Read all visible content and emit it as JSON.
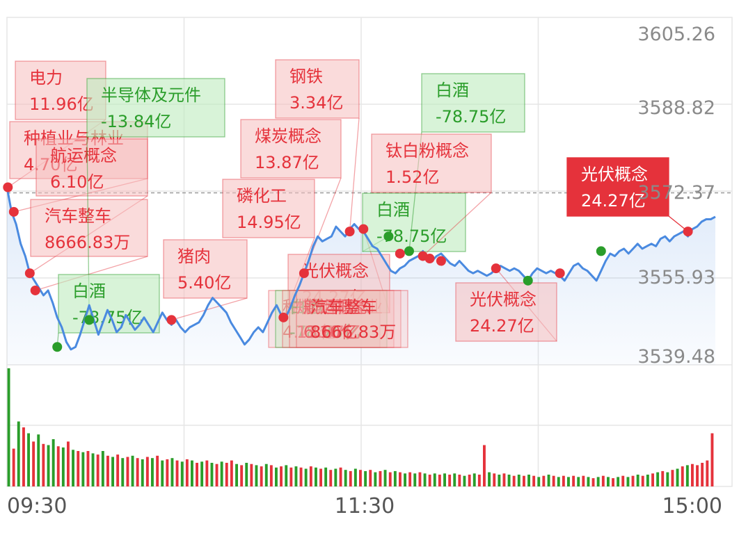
{
  "colors": {
    "up": "#e5323b",
    "down": "#2a9d2a",
    "line": "#4a8ae0",
    "grid": "#e6e6e6",
    "axis_text": "#8a8a8a"
  },
  "chart_data": {
    "type": "line",
    "title": "",
    "xlabel": "",
    "ylabel": "",
    "y_ticks": [
      "3605.26",
      "3588.82",
      "3572.37",
      "3555.93",
      "3539.48"
    ],
    "ylim": [
      3539.48,
      3605.26
    ],
    "reference_price": 3572.37,
    "time_ticks": [
      "09:30",
      "11:30",
      "15:00"
    ],
    "price_series": [
      3573.5,
      3568.5,
      3566.0,
      3562.0,
      3559.5,
      3556.0,
      3554.5,
      3553.0,
      3551.5,
      3552.5,
      3550.0,
      3547.0,
      3545.0,
      3542.0,
      3540.5,
      3541.0,
      3543.5,
      3546.5,
      3549.5,
      3546.5,
      3543.5,
      3546.0,
      3548.5,
      3546.5,
      3544.0,
      3545.0,
      3547.5,
      3546.0,
      3544.5,
      3545.5,
      3547.0,
      3545.5,
      3544.0,
      3546.0,
      3548.0,
      3546.5,
      3545.5,
      3546.5,
      3545.0,
      3544.0,
      3545.0,
      3545.5,
      3546.0,
      3547.5,
      3549.5,
      3551.0,
      3550.0,
      3549.0,
      3548.0,
      3546.0,
      3544.5,
      3543.0,
      3541.5,
      3542.5,
      3544.0,
      3545.0,
      3544.0,
      3546.0,
      3548.0,
      3549.5,
      3547.5,
      3547.0,
      3549.0,
      3551.5,
      3553.5,
      3556.0,
      3558.5,
      3561.5,
      3563.5,
      3562.5,
      3563.0,
      3563.5,
      3565.5,
      3564.5,
      3563.5,
      3565.0,
      3566.0,
      3565.0,
      3564.5,
      3563.0,
      3561.5,
      3561.0,
      3559.5,
      3558.0,
      3556.5,
      3556.0,
      3557.0,
      3557.5,
      3558.5,
      3559.0,
      3559.5,
      3560.5,
      3559.0,
      3558.5,
      3559.5,
      3560.0,
      3559.0,
      3558.0,
      3557.5,
      3558.5,
      3557.5,
      3556.5,
      3556.0,
      3556.5,
      3556.0,
      3555.5,
      3556.0,
      3557.0,
      3557.5,
      3557.0,
      3556.5,
      3557.0,
      3556.5,
      3555.5,
      3554.5,
      3556.0,
      3557.0,
      3556.5,
      3556.0,
      3556.5,
      3556.0,
      3555.5,
      3554.5,
      3556.0,
      3557.5,
      3558.0,
      3557.0,
      3556.5,
      3555.5,
      3554.5,
      3556.5,
      3558.5,
      3560.0,
      3559.5,
      3560.5,
      3561.0,
      3560.0,
      3561.0,
      3562.0,
      3561.0,
      3561.5,
      3562.0,
      3561.5,
      3563.0,
      3563.5,
      3562.5,
      3563.5,
      3564.0,
      3564.5,
      3563.5,
      3565.0,
      3565.5,
      3566.5,
      3567.0,
      3567.0,
      3567.5
    ],
    "volume_bars": [
      {
        "v": 1.0,
        "c": "down"
      },
      {
        "v": 0.32,
        "c": "up"
      },
      {
        "v": 0.55,
        "c": "down"
      },
      {
        "v": 0.5,
        "c": "up"
      },
      {
        "v": 0.45,
        "c": "down"
      },
      {
        "v": 0.38,
        "c": "up"
      },
      {
        "v": 0.44,
        "c": "down"
      },
      {
        "v": 0.36,
        "c": "up"
      },
      {
        "v": 0.35,
        "c": "down"
      },
      {
        "v": 0.4,
        "c": "down"
      },
      {
        "v": 0.34,
        "c": "up"
      },
      {
        "v": 0.33,
        "c": "down"
      },
      {
        "v": 0.38,
        "c": "up"
      },
      {
        "v": 0.31,
        "c": "down"
      },
      {
        "v": 0.3,
        "c": "up"
      },
      {
        "v": 0.29,
        "c": "down"
      },
      {
        "v": 0.3,
        "c": "up"
      },
      {
        "v": 0.28,
        "c": "down"
      },
      {
        "v": 0.27,
        "c": "up"
      },
      {
        "v": 0.3,
        "c": "down"
      },
      {
        "v": 0.26,
        "c": "up"
      },
      {
        "v": 0.25,
        "c": "down"
      },
      {
        "v": 0.27,
        "c": "up"
      },
      {
        "v": 0.24,
        "c": "down"
      },
      {
        "v": 0.25,
        "c": "up"
      },
      {
        "v": 0.26,
        "c": "down"
      },
      {
        "v": 0.24,
        "c": "up"
      },
      {
        "v": 0.23,
        "c": "down"
      },
      {
        "v": 0.25,
        "c": "up"
      },
      {
        "v": 0.24,
        "c": "down"
      },
      {
        "v": 0.26,
        "c": "up"
      },
      {
        "v": 0.22,
        "c": "down"
      },
      {
        "v": 0.23,
        "c": "up"
      },
      {
        "v": 0.24,
        "c": "down"
      },
      {
        "v": 0.22,
        "c": "up"
      },
      {
        "v": 0.21,
        "c": "down"
      },
      {
        "v": 0.23,
        "c": "up"
      },
      {
        "v": 0.22,
        "c": "down"
      },
      {
        "v": 0.2,
        "c": "up"
      },
      {
        "v": 0.21,
        "c": "down"
      },
      {
        "v": 0.22,
        "c": "up"
      },
      {
        "v": 0.2,
        "c": "down"
      },
      {
        "v": 0.19,
        "c": "up"
      },
      {
        "v": 0.21,
        "c": "down"
      },
      {
        "v": 0.2,
        "c": "up"
      },
      {
        "v": 0.22,
        "c": "up"
      },
      {
        "v": 0.19,
        "c": "down"
      },
      {
        "v": 0.18,
        "c": "up"
      },
      {
        "v": 0.2,
        "c": "down"
      },
      {
        "v": 0.19,
        "c": "up"
      },
      {
        "v": 0.18,
        "c": "down"
      },
      {
        "v": 0.17,
        "c": "up"
      },
      {
        "v": 0.19,
        "c": "down"
      },
      {
        "v": 0.18,
        "c": "up"
      },
      {
        "v": 0.16,
        "c": "down"
      },
      {
        "v": 0.17,
        "c": "up"
      },
      {
        "v": 0.18,
        "c": "down"
      },
      {
        "v": 0.16,
        "c": "up"
      },
      {
        "v": 0.17,
        "c": "down"
      },
      {
        "v": 0.16,
        "c": "up"
      },
      {
        "v": 0.15,
        "c": "down"
      },
      {
        "v": 0.17,
        "c": "up"
      },
      {
        "v": 0.16,
        "c": "down"
      },
      {
        "v": 0.15,
        "c": "up"
      },
      {
        "v": 0.16,
        "c": "down"
      },
      {
        "v": 0.14,
        "c": "up"
      },
      {
        "v": 0.15,
        "c": "down"
      },
      {
        "v": 0.16,
        "c": "up"
      },
      {
        "v": 0.14,
        "c": "down"
      },
      {
        "v": 0.13,
        "c": "up"
      },
      {
        "v": 0.15,
        "c": "down"
      },
      {
        "v": 0.14,
        "c": "up"
      },
      {
        "v": 0.13,
        "c": "down"
      },
      {
        "v": 0.14,
        "c": "up"
      },
      {
        "v": 0.12,
        "c": "down"
      },
      {
        "v": 0.13,
        "c": "up"
      },
      {
        "v": 0.14,
        "c": "down"
      },
      {
        "v": 0.12,
        "c": "up"
      },
      {
        "v": 0.13,
        "c": "down"
      },
      {
        "v": 0.12,
        "c": "up"
      },
      {
        "v": 0.11,
        "c": "down"
      },
      {
        "v": 0.12,
        "c": "up"
      },
      {
        "v": 0.11,
        "c": "down"
      },
      {
        "v": 0.12,
        "c": "up"
      },
      {
        "v": 0.11,
        "c": "down"
      },
      {
        "v": 0.1,
        "c": "up"
      },
      {
        "v": 0.11,
        "c": "down"
      },
      {
        "v": 0.1,
        "c": "up"
      },
      {
        "v": 0.11,
        "c": "down"
      },
      {
        "v": 0.1,
        "c": "up"
      },
      {
        "v": 0.11,
        "c": "down"
      },
      {
        "v": 0.1,
        "c": "up"
      },
      {
        "v": 0.09,
        "c": "down"
      },
      {
        "v": 0.1,
        "c": "up"
      },
      {
        "v": 0.11,
        "c": "down"
      },
      {
        "v": 0.1,
        "c": "up"
      },
      {
        "v": 0.35,
        "c": "up"
      },
      {
        "v": 0.12,
        "c": "down"
      },
      {
        "v": 0.11,
        "c": "up"
      },
      {
        "v": 0.1,
        "c": "down"
      },
      {
        "v": 0.11,
        "c": "up"
      },
      {
        "v": 0.1,
        "c": "down"
      },
      {
        "v": 0.09,
        "c": "up"
      },
      {
        "v": 0.1,
        "c": "down"
      },
      {
        "v": 0.09,
        "c": "up"
      },
      {
        "v": 0.1,
        "c": "down"
      },
      {
        "v": 0.09,
        "c": "up"
      },
      {
        "v": 0.08,
        "c": "down"
      },
      {
        "v": 0.09,
        "c": "up"
      },
      {
        "v": 0.1,
        "c": "down"
      },
      {
        "v": 0.09,
        "c": "up"
      },
      {
        "v": 0.08,
        "c": "down"
      },
      {
        "v": 0.09,
        "c": "up"
      },
      {
        "v": 0.08,
        "c": "down"
      },
      {
        "v": 0.09,
        "c": "up"
      },
      {
        "v": 0.08,
        "c": "down"
      },
      {
        "v": 0.09,
        "c": "up"
      },
      {
        "v": 0.08,
        "c": "down"
      },
      {
        "v": 0.07,
        "c": "up"
      },
      {
        "v": 0.08,
        "c": "down"
      },
      {
        "v": 0.09,
        "c": "up"
      },
      {
        "v": 0.08,
        "c": "down"
      },
      {
        "v": 0.07,
        "c": "up"
      },
      {
        "v": 0.08,
        "c": "down"
      },
      {
        "v": 0.09,
        "c": "up"
      },
      {
        "v": 0.08,
        "c": "down"
      },
      {
        "v": 0.09,
        "c": "up"
      },
      {
        "v": 0.1,
        "c": "down"
      },
      {
        "v": 0.09,
        "c": "up"
      },
      {
        "v": 0.1,
        "c": "down"
      },
      {
        "v": 0.11,
        "c": "up"
      },
      {
        "v": 0.12,
        "c": "down"
      },
      {
        "v": 0.13,
        "c": "up"
      },
      {
        "v": 0.12,
        "c": "down"
      },
      {
        "v": 0.14,
        "c": "up"
      },
      {
        "v": 0.15,
        "c": "down"
      },
      {
        "v": 0.17,
        "c": "up"
      },
      {
        "v": 0.18,
        "c": "down"
      },
      {
        "v": 0.19,
        "c": "up"
      },
      {
        "v": 0.18,
        "c": "up"
      },
      {
        "v": 0.2,
        "c": "up"
      },
      {
        "v": 0.22,
        "c": "up"
      },
      {
        "v": 0.45,
        "c": "up"
      }
    ],
    "annotations": [
      {
        "name": "电力",
        "value": "11.96亿",
        "color": "up",
        "at": [
          0.2,
          3573.5
        ]
      },
      {
        "name": "种植业与林业",
        "value": "4.70亿",
        "color": "up",
        "at": [
          1.5,
          3568.5
        ]
      },
      {
        "name": "航运概念",
        "value": "6.10亿",
        "color": "up",
        "at": [
          5.0,
          3556.0
        ]
      },
      {
        "name": "汽车整车",
        "value": "8666.83万",
        "color": "up",
        "at": [
          6.2,
          3552.5
        ]
      },
      {
        "name": "半导体及元件",
        "value": "-13.84亿",
        "color": "down",
        "at": [
          18.0,
          3546.5
        ]
      },
      {
        "name": "白酒",
        "value": "-78.75亿",
        "color": "down",
        "at": [
          11.0,
          3541.0
        ]
      },
      {
        "name": "猪肉",
        "value": "5.40亿",
        "color": "up",
        "at": [
          36.0,
          3546.5
        ]
      },
      {
        "name": "磷化工",
        "value": "14.95亿",
        "color": "up",
        "at": [
          60.5,
          3547.0
        ]
      },
      {
        "name": "煤炭概念",
        "value": "13.87亿",
        "color": "up",
        "at": [
          65.0,
          3556.0
        ]
      },
      {
        "name": "钢铁",
        "value": "3.34亿",
        "color": "up",
        "at": [
          75.0,
          3564.5
        ]
      },
      {
        "name": "光伏概念",
        "value": "24.27亿",
        "color": "up",
        "at": [
          78.0,
          3565.0
        ]
      },
      {
        "name": "白酒",
        "value": "-78.75亿",
        "color": "down",
        "at": [
          83.5,
          3563.5
        ]
      },
      {
        "name": "白酒",
        "value": "-78.75亿",
        "color": "down",
        "at": [
          88.0,
          3560.5
        ]
      },
      {
        "name": "钛白粉概念",
        "value": "1.52亿",
        "color": "up",
        "at": [
          91.0,
          3559.5
        ]
      },
      {
        "name": "光伏概念",
        "value": "24.27亿",
        "color": "up",
        "at": [
          107.0,
          3557.0
        ]
      },
      {
        "name": "白酒",
        "value": "-78.75亿",
        "color": "down",
        "at": [
          114.0,
          3554.5
        ]
      },
      {
        "name": "光伏概念",
        "value": "24.27亿",
        "color": "up",
        "at": [
          121.0,
          3556.0
        ]
      },
      {
        "name": "光伏概念",
        "value": "24.27亿",
        "color": "up",
        "highlight": true,
        "at": [
          149.0,
          3564.5
        ]
      }
    ],
    "extra_markers": [
      {
        "color": "up",
        "at": [
          86.0,
          3560.0
        ]
      },
      {
        "color": "up",
        "at": [
          92.5,
          3559.0
        ]
      },
      {
        "color": "up",
        "at": [
          95.0,
          3558.5
        ]
      },
      {
        "color": "down",
        "at": [
          130.0,
          3560.5
        ]
      }
    ],
    "stacked_label_group": {
      "names": [
        "种植业与林业",
        "白酒",
        "煤炭概念",
        "航运概念",
        "汽车整车"
      ],
      "values": [
        "4.70亿",
        "-78.75亿",
        "13.87亿",
        "6.10亿",
        "8666.83万"
      ]
    }
  }
}
